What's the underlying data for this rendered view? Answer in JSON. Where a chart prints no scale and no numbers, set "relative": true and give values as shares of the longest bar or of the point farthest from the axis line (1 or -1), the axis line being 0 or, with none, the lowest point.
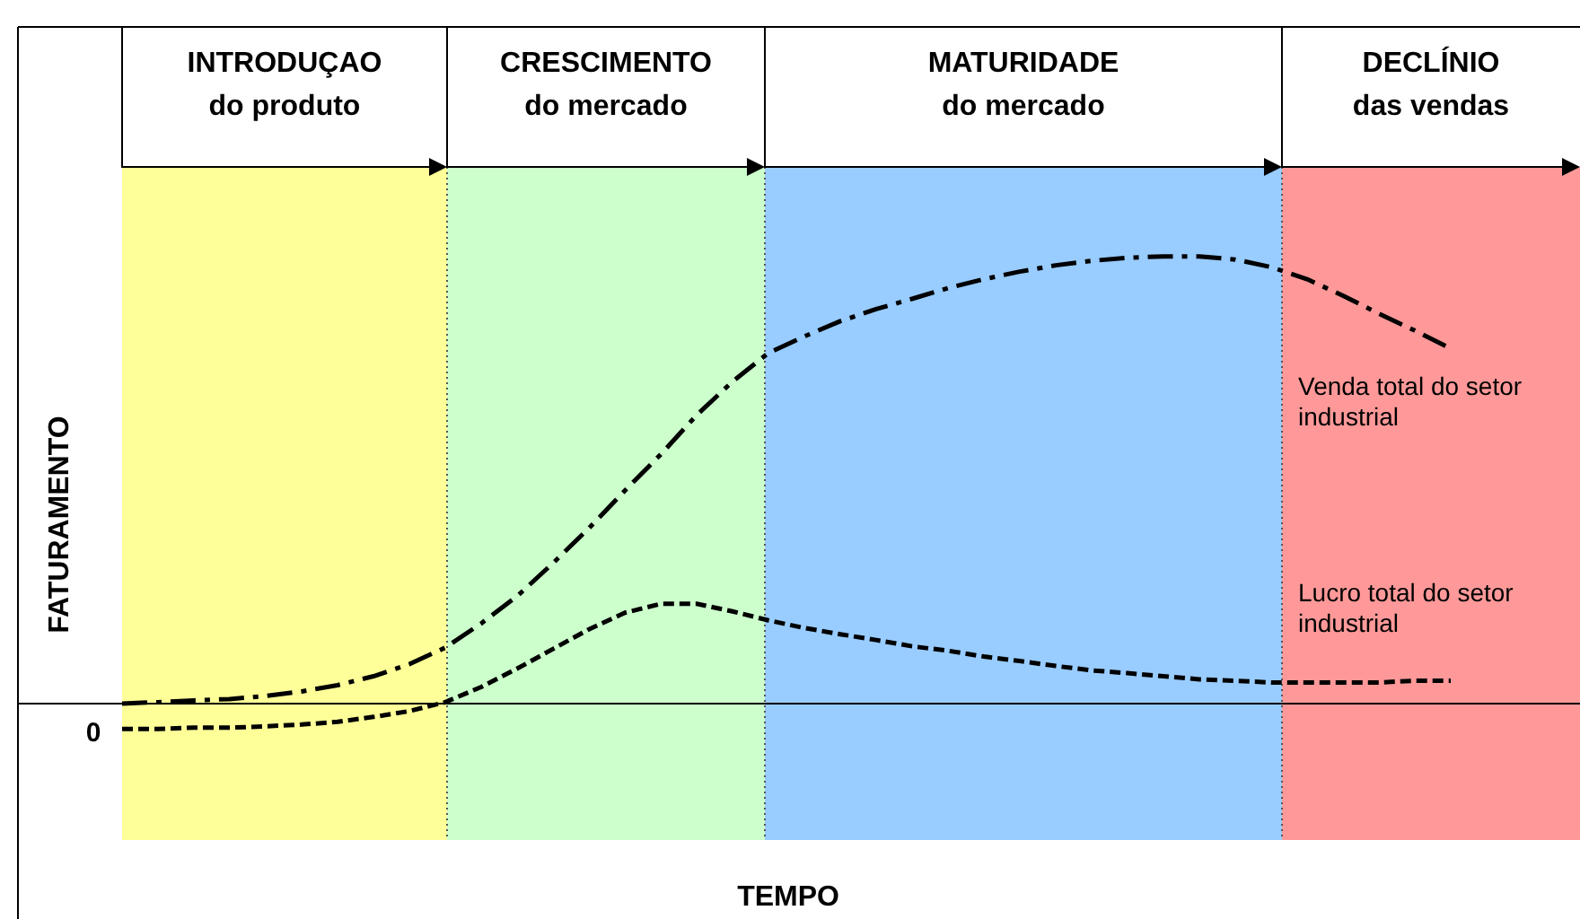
{
  "chart_data": {
    "type": "line",
    "relative": true,
    "ylabel": "FATURAMENTO",
    "legend": false,
    "marker": "none",
    "annotations": [
      "0",
      "INTRODUÇAO\ndo produto",
      "CRESCIMENTO\ndo mercado",
      "MATURIDADE\ndo mercado",
      "DECLÍNIO\ndas vendas",
      "TEMPO"
    ],
    "categories": [
      null,
      null,
      null,
      null,
      null,
      null,
      null,
      null,
      null,
      null,
      null,
      null,
      null,
      null,
      null,
      null,
      null,
      null,
      null,
      null,
      null,
      null,
      null,
      null,
      null,
      null,
      null,
      null,
      null,
      null,
      null,
      null,
      null,
      null,
      null,
      null,
      null,
      null
    ],
    "series": [
      {
        "name": "Venda total do setor industrial",
        "color": "#000000",
        "line_style": "dashdot",
        "values": [
          0,
          0.003,
          0.007,
          0.01,
          0.017,
          0.027,
          0.041,
          0.061,
          0.088,
          0.125,
          0.179,
          0.24,
          0.314,
          0.392,
          0.476,
          0.557,
          0.645,
          0.72,
          0.784,
          0.821,
          0.855,
          0.882,
          0.905,
          0.929,
          0.949,
          0.966,
          0.98,
          0.99,
          0.997,
          1,
          1,
          0.993,
          0.976,
          0.949,
          0.912,
          0.872,
          0.834,
          0.794
        ]
      },
      {
        "name": "Lucro total do setor industrial",
        "color": "#000000",
        "line_style": "dashed",
        "values": [
          -0.057,
          -0.057,
          -0.054,
          -0.054,
          -0.051,
          -0.047,
          -0.041,
          -0.03,
          -0.017,
          0.003,
          0.037,
          0.078,
          0.122,
          0.166,
          0.203,
          0.223,
          0.223,
          0.206,
          0.186,
          0.169,
          0.155,
          0.142,
          0.128,
          0.118,
          0.105,
          0.095,
          0.084,
          0.074,
          0.068,
          0.061,
          0.054,
          0.051,
          0.047,
          0.047,
          0.047,
          0.047,
          0.051,
          0.051
        ]
      }
    ]
  }
}
